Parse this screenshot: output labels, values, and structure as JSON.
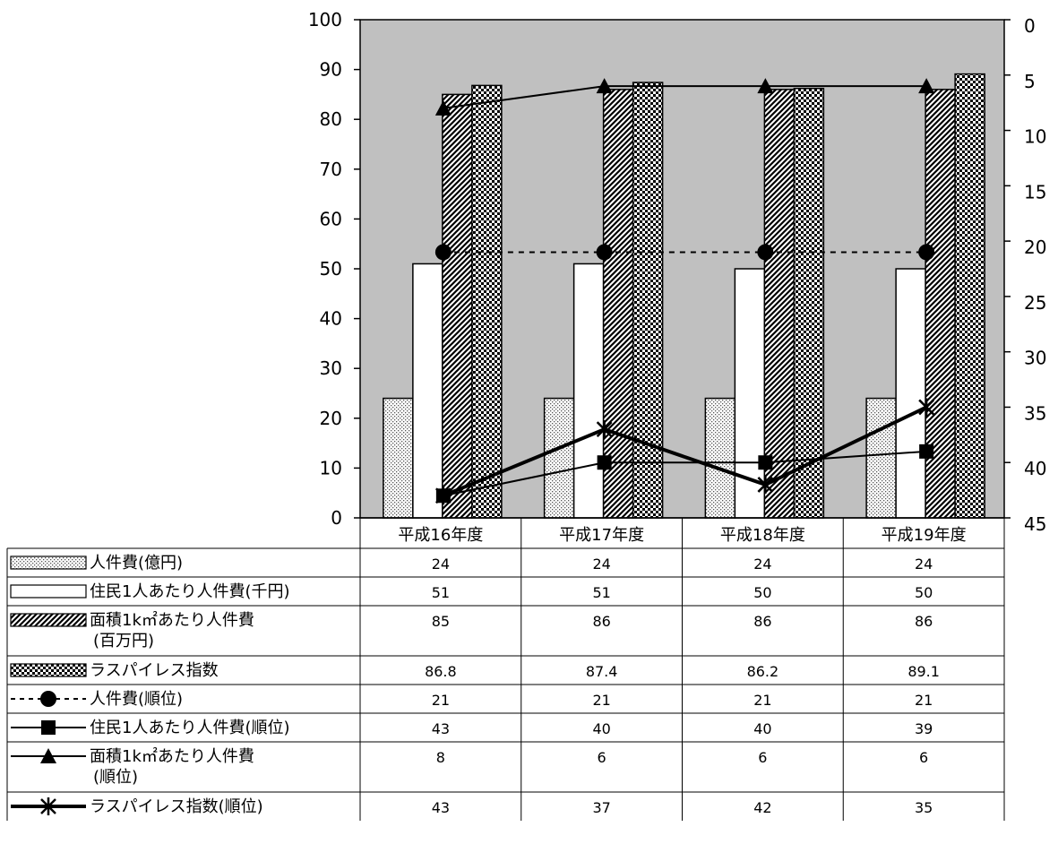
{
  "chart_data": {
    "type": "bar",
    "categories": [
      "平成16年度",
      "平成17年度",
      "平成18年度",
      "平成19年度"
    ],
    "left_axis": {
      "min": 0,
      "max": 100,
      "step": 10,
      "ticks": [
        "0",
        "10",
        "20",
        "30",
        "40",
        "50",
        "60",
        "70",
        "80",
        "90",
        "100"
      ]
    },
    "right_axis": {
      "min": 0,
      "max": 45,
      "step": 5,
      "reversed": true,
      "ticks": [
        "0",
        "5",
        "10",
        "15",
        "20",
        "25",
        "30",
        "35",
        "40",
        "45"
      ]
    },
    "plot_background": "#c0c0c0",
    "grid": false,
    "bar_series": [
      {
        "legend_lines": [
          "人件費(億円)"
        ],
        "pattern": "dots",
        "values": [
          24,
          24,
          24,
          24
        ],
        "display": [
          "24",
          "24",
          "24",
          "24"
        ]
      },
      {
        "legend_lines": [
          "住民1人あたり人件費(千円)"
        ],
        "pattern": "white",
        "values": [
          51,
          51,
          50,
          50
        ],
        "display": [
          "51",
          "51",
          "50",
          "50"
        ]
      },
      {
        "legend_lines": [
          "面積1k㎡あたり人件費",
          "(百万円)"
        ],
        "pattern": "hatch",
        "values": [
          85,
          86,
          86,
          86
        ],
        "display": [
          "85",
          "86",
          "86",
          "86"
        ]
      },
      {
        "legend_lines": [
          "ラスパイレス指数"
        ],
        "pattern": "checker",
        "values": [
          86.8,
          87.4,
          86.2,
          89.1
        ],
        "display": [
          "86.8",
          "87.4",
          "86.2",
          "89.1"
        ]
      }
    ],
    "line_series": [
      {
        "legend_lines": [
          "人件費(順位)"
        ],
        "marker": "circle",
        "dash": true,
        "width": 2,
        "values": [
          21,
          21,
          21,
          21
        ],
        "display": [
          "21",
          "21",
          "21",
          "21"
        ]
      },
      {
        "legend_lines": [
          "住民1人あたり人件費(順位)"
        ],
        "marker": "square",
        "dash": false,
        "width": 2,
        "values": [
          43,
          40,
          40,
          39
        ],
        "display": [
          "43",
          "40",
          "40",
          "39"
        ]
      },
      {
        "legend_lines": [
          "面積1k㎡あたり人件費",
          "(順位)"
        ],
        "marker": "triangle",
        "dash": false,
        "width": 2,
        "values": [
          8,
          6,
          6,
          6
        ],
        "display": [
          "8",
          "6",
          "6",
          "6"
        ]
      },
      {
        "legend_lines": [
          "ラスパイレス指数(順位)"
        ],
        "marker": "star",
        "dash": false,
        "width": 4,
        "values": [
          43,
          37,
          42,
          35
        ],
        "display": [
          "43",
          "37",
          "42",
          "35"
        ]
      }
    ]
  }
}
